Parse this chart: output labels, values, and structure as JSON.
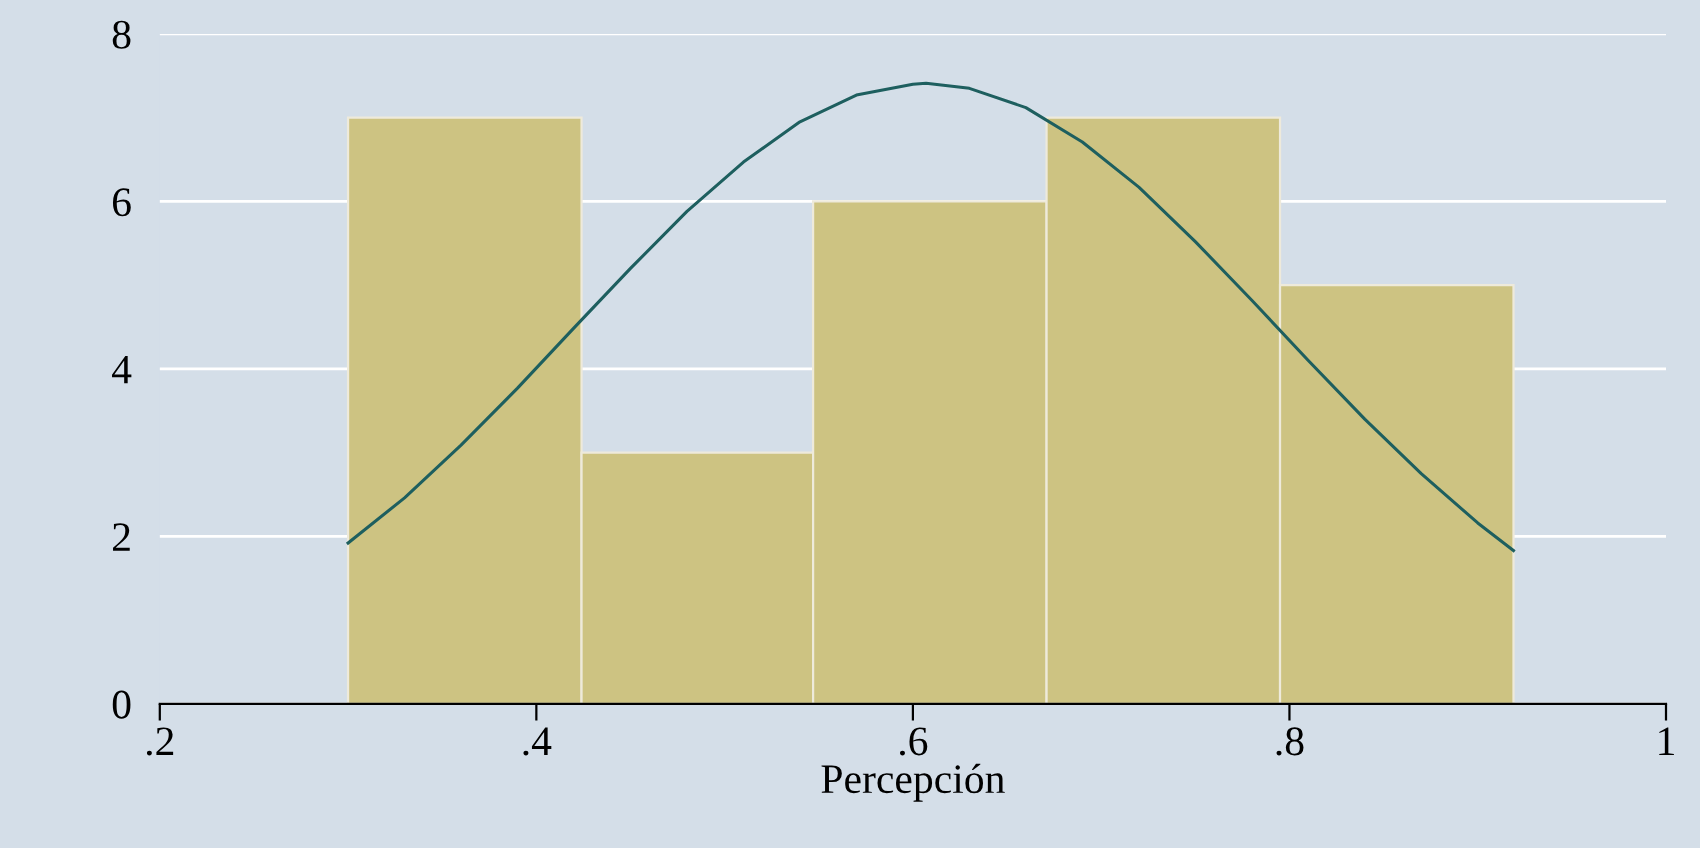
{
  "chart_data": {
    "type": "histogram",
    "xlabel": "Percepción",
    "bins": [
      0.3,
      0.424,
      0.547,
      0.671,
      0.795,
      0.919
    ],
    "values": [
      7,
      3,
      6,
      7,
      5
    ],
    "color": "#cdc382",
    "series": [
      {
        "type": "line",
        "color": "#1e5f5f",
        "x": [
          0.3,
          0.33,
          0.36,
          0.39,
          0.42,
          0.45,
          0.48,
          0.51,
          0.54,
          0.57,
          0.6,
          0.607,
          0.63,
          0.66,
          0.69,
          0.72,
          0.75,
          0.78,
          0.81,
          0.84,
          0.87,
          0.9,
          0.919
        ],
        "values": [
          1.92,
          2.46,
          3.09,
          3.77,
          4.49,
          5.2,
          5.88,
          6.47,
          6.95,
          7.27,
          7.4,
          7.41,
          7.35,
          7.12,
          6.71,
          6.17,
          5.52,
          4.82,
          4.1,
          3.4,
          2.75,
          2.16,
          1.83
        ]
      }
    ],
    "xlim": [
      0.2,
      1
    ],
    "xticks": [
      {
        "value": 0.2,
        "label": ".2"
      },
      {
        "value": 0.4,
        "label": ".4"
      },
      {
        "value": 0.6,
        "label": ".6"
      },
      {
        "value": 0.8,
        "label": ".8"
      },
      1
    ],
    "ylim": [
      0,
      8
    ],
    "yticks": [
      0,
      2,
      4,
      6,
      8
    ],
    "grid": "y"
  }
}
